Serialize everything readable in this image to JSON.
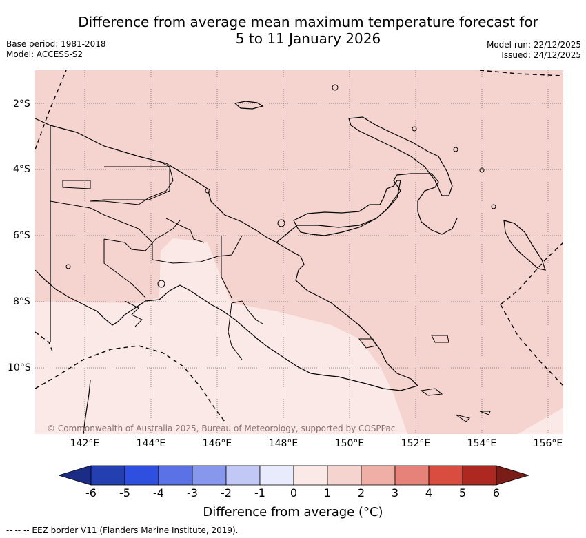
{
  "title_line1": "Difference from average mean maximum temperature forecast for",
  "title_line2": "5 to 11 January 2026",
  "base_period": "Base period: 1981-2018",
  "model": "Model: ACCESS-S2",
  "model_run": "Model run: 22/12/2025",
  "issued": "Issued: 24/12/2025",
  "copyright": "© Commonwealth of Australia 2025, Bureau of Meteorology, supported by COSPPac",
  "lat_labels": [
    "2°S",
    "4°S",
    "6°S",
    "8°S",
    "10°S"
  ],
  "lon_labels": [
    "142°E",
    "144°E",
    "146°E",
    "148°E",
    "150°E",
    "152°E",
    "154°E",
    "156°E"
  ],
  "colorbar": {
    "ticks": [
      "-6",
      "-5",
      "-4",
      "-3",
      "-2",
      "-1",
      "0",
      "1",
      "2",
      "3",
      "4",
      "5",
      "6"
    ],
    "colors": [
      "#2440b0",
      "#2e4fe0",
      "#5a72e6",
      "#8797ec",
      "#c1c8f5",
      "#e8ebfb",
      "#fbe9e7",
      "#f5d4d0",
      "#efaea6",
      "#e6827a",
      "#d94d40",
      "#ad2821"
    ],
    "low_color": "#1b2c86",
    "high_color": "#7a1c17",
    "label": "Difference from average (°C)"
  },
  "map_colors": {
    "anomaly_0_1": "#fbe9e7",
    "anomaly_1_2": "#f5d4d0"
  },
  "eez_legend": "--  --  -- EEZ border V11 (Flanders Marine Institute, 2019)."
}
